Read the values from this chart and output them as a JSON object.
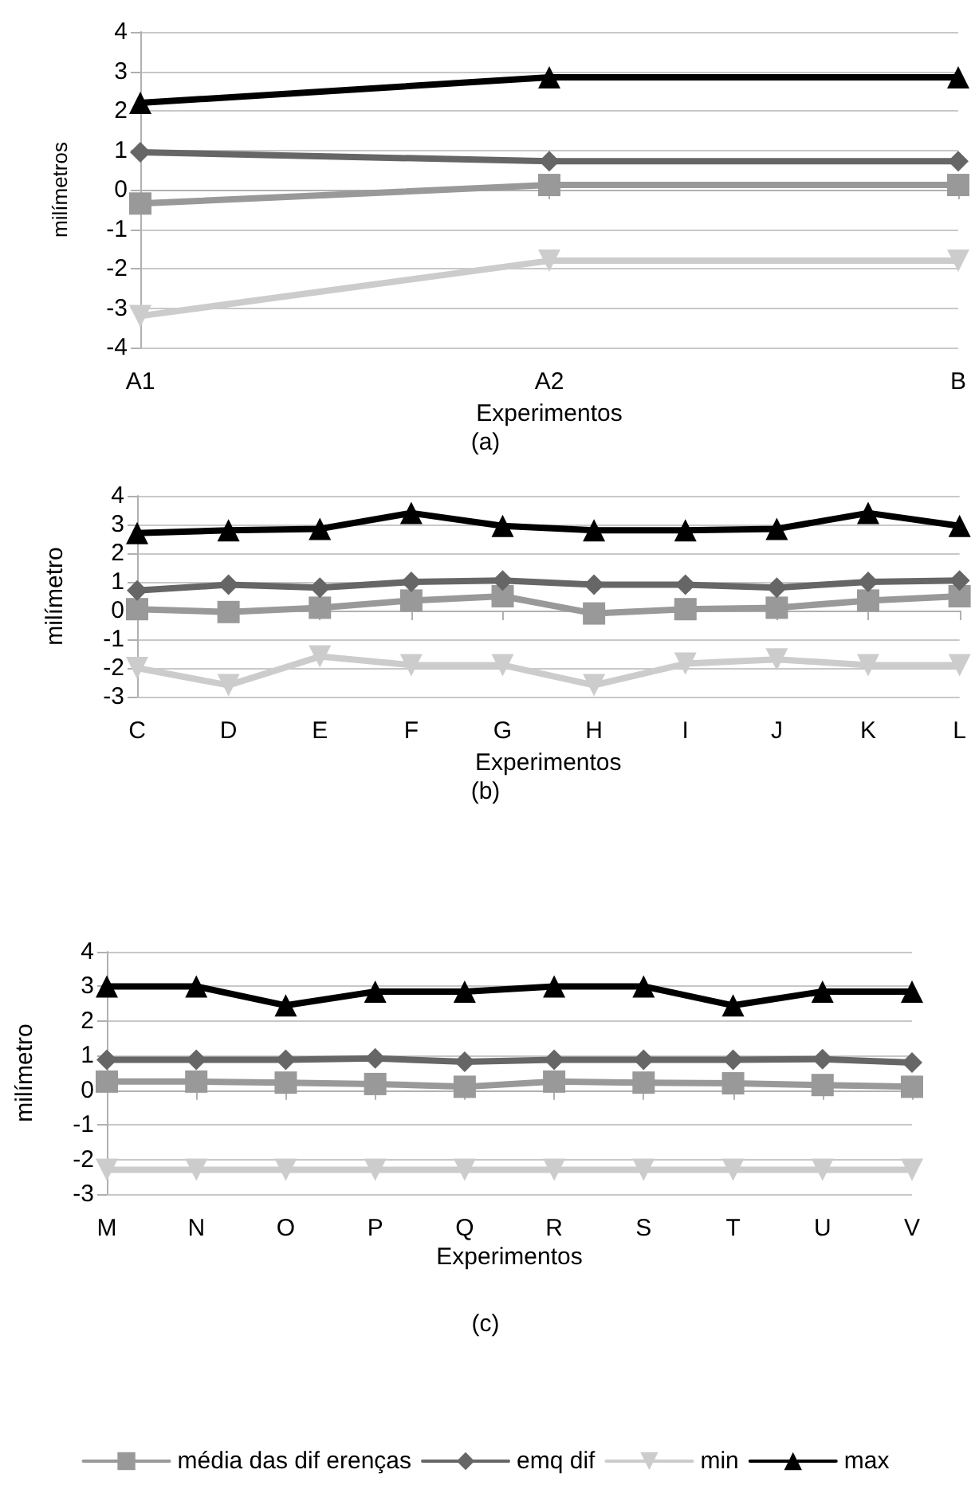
{
  "chart_data": [
    {
      "type": "line",
      "categories": [
        "A1",
        "A2",
        "B"
      ],
      "xlabel": "Experimentos",
      "ylabel": "milímetros",
      "annotations": [
        "(a)"
      ],
      "ylim": [
        -4,
        4
      ],
      "yticks": [
        -4,
        -3,
        -2,
        -1,
        0,
        1,
        2,
        3,
        4
      ],
      "grid": "y",
      "legend": false,
      "series": [
        {
          "color": "#999999",
          "marker": "square",
          "values": [
            -0.35,
            0.12,
            0.12
          ]
        },
        {
          "color": "#666666",
          "marker": "diamond",
          "values": [
            0.95,
            0.72,
            0.72
          ]
        },
        {
          "color": "#cccccc",
          "marker": "triangle-down",
          "values": [
            -3.2,
            -1.8,
            -1.8
          ]
        },
        {
          "color": "#000000",
          "marker": "triangle",
          "values": [
            2.2,
            2.85,
            2.85
          ]
        }
      ]
    },
    {
      "type": "line",
      "categories": [
        "C",
        "D",
        "E",
        "F",
        "G",
        "H",
        "I",
        "J",
        "K",
        "L"
      ],
      "xlabel": "Experimentos",
      "ylabel": "milímetro",
      "annotations": [
        "(b)"
      ],
      "ylim": [
        -3,
        4
      ],
      "yticks": [
        -3,
        -2,
        -1,
        0,
        1,
        2,
        3,
        4
      ],
      "grid": "y",
      "legend": false,
      "series": [
        {
          "color": "#999999",
          "marker": "square",
          "values": [
            0.05,
            -0.05,
            0.1,
            0.35,
            0.5,
            -0.1,
            0.05,
            0.1,
            0.35,
            0.5
          ]
        },
        {
          "color": "#666666",
          "marker": "diamond",
          "values": [
            0.7,
            0.9,
            0.8,
            1.0,
            1.05,
            0.9,
            0.9,
            0.8,
            1.0,
            1.05
          ]
        },
        {
          "color": "#cccccc",
          "marker": "triangle-down",
          "values": [
            -2.0,
            -2.6,
            -1.6,
            -1.9,
            -1.9,
            -2.6,
            -1.85,
            -1.7,
            -1.9,
            -1.9
          ]
        },
        {
          "color": "#000000",
          "marker": "triangle",
          "values": [
            2.7,
            2.8,
            2.85,
            3.4,
            2.95,
            2.8,
            2.8,
            2.85,
            3.4,
            2.95
          ]
        }
      ]
    },
    {
      "type": "line",
      "categories": [
        "M",
        "N",
        "O",
        "P",
        "Q",
        "R",
        "S",
        "T",
        "U",
        "V"
      ],
      "xlabel": "Experimentos",
      "ylabel": "milímetro",
      "annotations": [
        "(c)"
      ],
      "ylim": [
        -3,
        4
      ],
      "yticks": [
        -3,
        -2,
        -1,
        0,
        1,
        2,
        3,
        4
      ],
      "grid": "y",
      "legend": "bottom",
      "series": [
        {
          "name": "média das dif erenças",
          "color": "#999999",
          "marker": "square",
          "values": [
            0.25,
            0.25,
            0.22,
            0.18,
            0.1,
            0.25,
            0.22,
            0.2,
            0.15,
            0.1
          ]
        },
        {
          "name": "emq dif",
          "color": "#666666",
          "marker": "diamond",
          "values": [
            0.88,
            0.88,
            0.88,
            0.92,
            0.82,
            0.88,
            0.88,
            0.88,
            0.9,
            0.8
          ]
        },
        {
          "name": "min",
          "color": "#cccccc",
          "marker": "triangle-down",
          "values": [
            -2.3,
            -2.3,
            -2.3,
            -2.3,
            -2.3,
            -2.3,
            -2.3,
            -2.3,
            -2.3,
            -2.3
          ]
        },
        {
          "name": "max",
          "color": "#000000",
          "marker": "triangle",
          "values": [
            3.0,
            3.0,
            2.45,
            2.85,
            2.85,
            3.0,
            3.0,
            2.45,
            2.85,
            2.85
          ]
        }
      ]
    }
  ]
}
